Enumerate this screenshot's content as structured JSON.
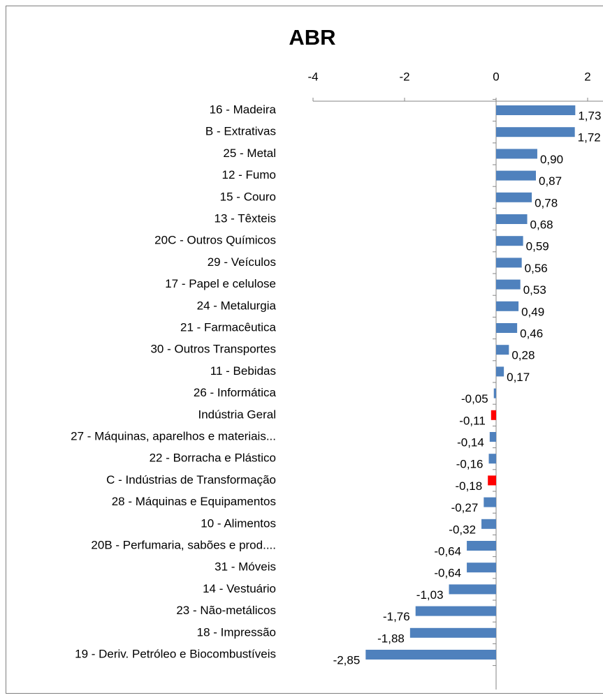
{
  "chart_data": {
    "type": "bar",
    "orientation": "horizontal",
    "title": "ABR",
    "categories": [
      "16 - Madeira",
      "B - Extrativas",
      "25 - Metal",
      "12 - Fumo",
      "15 - Couro",
      "13 - Têxteis",
      "20C - Outros Químicos",
      "29 - Veículos",
      "17 - Papel e celulose",
      "24 - Metalurgia",
      "21 - Farmacêutica",
      "30 - Outros Transportes",
      "11 - Bebidas",
      "26 - Informática",
      "Indústria Geral",
      "27 - Máquinas, aparelhos e materiais...",
      "22 - Borracha e Plástico",
      "C - Indústrias de Transformação",
      "28 - Máquinas e Equipamentos",
      "10 - Alimentos",
      "20B - Perfumaria, sabões e prod....",
      "31 - Móveis",
      "14 - Vestuário",
      "23 - Não-metálicos",
      "18 - Impressão",
      "19 - Deriv. Petróleo e Biocombustíveis"
    ],
    "values": [
      1.73,
      1.72,
      0.9,
      0.87,
      0.78,
      0.68,
      0.59,
      0.56,
      0.53,
      0.49,
      0.46,
      0.28,
      0.17,
      -0.05,
      -0.11,
      -0.14,
      -0.16,
      -0.18,
      -0.27,
      -0.32,
      -0.64,
      -0.64,
      -1.03,
      -1.76,
      -1.88,
      -2.85
    ],
    "value_labels": [
      "1,73",
      "1,72",
      "0,90",
      "0,87",
      "0,78",
      "0,68",
      "0,59",
      "0,56",
      "0,53",
      "0,49",
      "0,46",
      "0,28",
      "0,17",
      "-0,05",
      "-0,11",
      "-0,14",
      "-0,16",
      "-0,18",
      "-0,27",
      "-0,32",
      "-0,64",
      "-0,64",
      "-1,03",
      "-1,76",
      "-1,88",
      "-2,85"
    ],
    "colors": [
      "#4f81bd",
      "#4f81bd",
      "#4f81bd",
      "#4f81bd",
      "#4f81bd",
      "#4f81bd",
      "#4f81bd",
      "#4f81bd",
      "#4f81bd",
      "#4f81bd",
      "#4f81bd",
      "#4f81bd",
      "#4f81bd",
      "#4f81bd",
      "#ff0000",
      "#4f81bd",
      "#4f81bd",
      "#ff0000",
      "#4f81bd",
      "#4f81bd",
      "#4f81bd",
      "#4f81bd",
      "#4f81bd",
      "#4f81bd",
      "#4f81bd",
      "#4f81bd"
    ],
    "xlim": [
      -4,
      2
    ],
    "xticks": [
      -4,
      -2,
      0,
      2
    ]
  }
}
